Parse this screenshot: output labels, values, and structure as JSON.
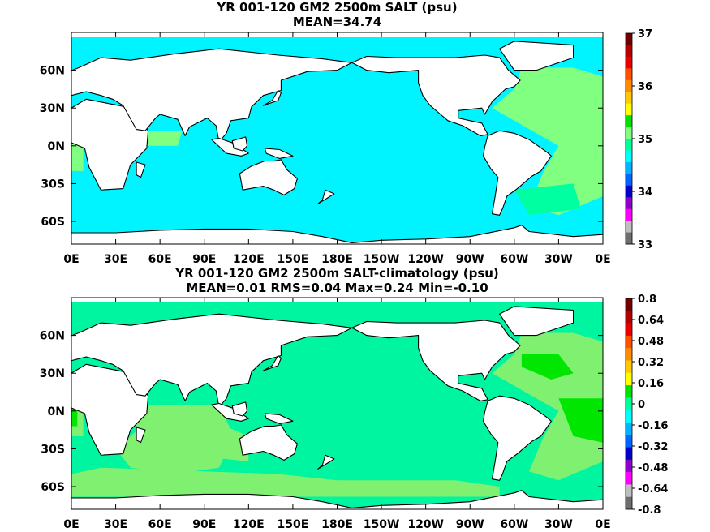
{
  "panels": [
    {
      "title": "YR 001-120 GM2 2500m SALT (psu)",
      "subtitle": "MEAN=34.74",
      "x_ticks": [
        "0E",
        "30E",
        "60E",
        "90E",
        "120E",
        "150E",
        "180E",
        "150W",
        "120W",
        "90W",
        "60W",
        "30W",
        "0E"
      ],
      "y_ticks": [
        "60N",
        "30N",
        "0N",
        "30S",
        "60S"
      ],
      "colorbar_ticks": [
        "37",
        "36",
        "35",
        "34",
        "33"
      ],
      "colorbar_colors": [
        "#6e0000",
        "#b30000",
        "#e60000",
        "#ff5000",
        "#ff8c00",
        "#ffc800",
        "#ffff00",
        "#00e100",
        "#7fff7f",
        "#00ff9c",
        "#00ffff",
        "#00b4ff",
        "#0064ff",
        "#0000c8",
        "#8c00c8",
        "#ff00ff",
        "#bebebe",
        "#6e6e6e"
      ],
      "ocean_color": "#00f4ff",
      "highlight_color": "#80ff80",
      "fill_color": "#00ffa0"
    },
    {
      "title": "YR 001-120 GM2 2500m SALT-climatology (psu)",
      "subtitle": "MEAN=0.01   RMS=0.04   Max=0.24   Min=-0.10",
      "x_ticks": [
        "0E",
        "30E",
        "60E",
        "90E",
        "120E",
        "150E",
        "180E",
        "150W",
        "120W",
        "90W",
        "60W",
        "30W",
        "0E"
      ],
      "y_ticks": [
        "60N",
        "30N",
        "0N",
        "30S",
        "60S"
      ],
      "colorbar_ticks": [
        "0.8",
        "0.64",
        "0.48",
        "0.32",
        "0.16",
        "0",
        "-0.16",
        "-0.32",
        "-0.48",
        "-0.64",
        "-0.8"
      ],
      "colorbar_colors": [
        "#6e0000",
        "#b30000",
        "#e60000",
        "#ff5000",
        "#ff8c00",
        "#ffc800",
        "#ffff00",
        "#00e100",
        "#00ff9c",
        "#00ffff",
        "#00b4ff",
        "#0064ff",
        "#0000c8",
        "#8c00c8",
        "#ff00ff",
        "#bebebe",
        "#6e6e6e"
      ],
      "ocean_color": "#00f5a0",
      "highlight_color": "#80f070",
      "fill_color": "#00e600"
    }
  ]
}
